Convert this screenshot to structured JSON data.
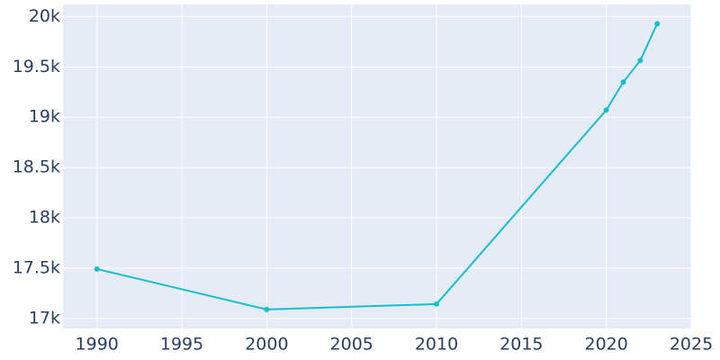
{
  "chart_data": {
    "type": "line",
    "x": [
      1990,
      2000,
      2010,
      2020,
      2021,
      2022,
      2023
    ],
    "series": [
      {
        "color": "#17becf",
        "values": [
          17491,
          17089,
          17143,
          19071,
          19348,
          19563,
          19929
        ]
      }
    ],
    "xlim": [
      1988,
      2025
    ],
    "xticks": [
      1990,
      1995,
      2000,
      2005,
      2010,
      2015,
      2020,
      2025
    ],
    "ylim": [
      16900,
      20120
    ],
    "yticks": [
      {
        "value": 17000,
        "label": "17k"
      },
      {
        "value": 17500,
        "label": "17.5k"
      },
      {
        "value": 18000,
        "label": "18k"
      },
      {
        "value": 18500,
        "label": "18.5k"
      },
      {
        "value": 19000,
        "label": "19k"
      },
      {
        "value": 19500,
        "label": "19.5k"
      },
      {
        "value": 20000,
        "label": "20k"
      }
    ],
    "grid": true
  }
}
